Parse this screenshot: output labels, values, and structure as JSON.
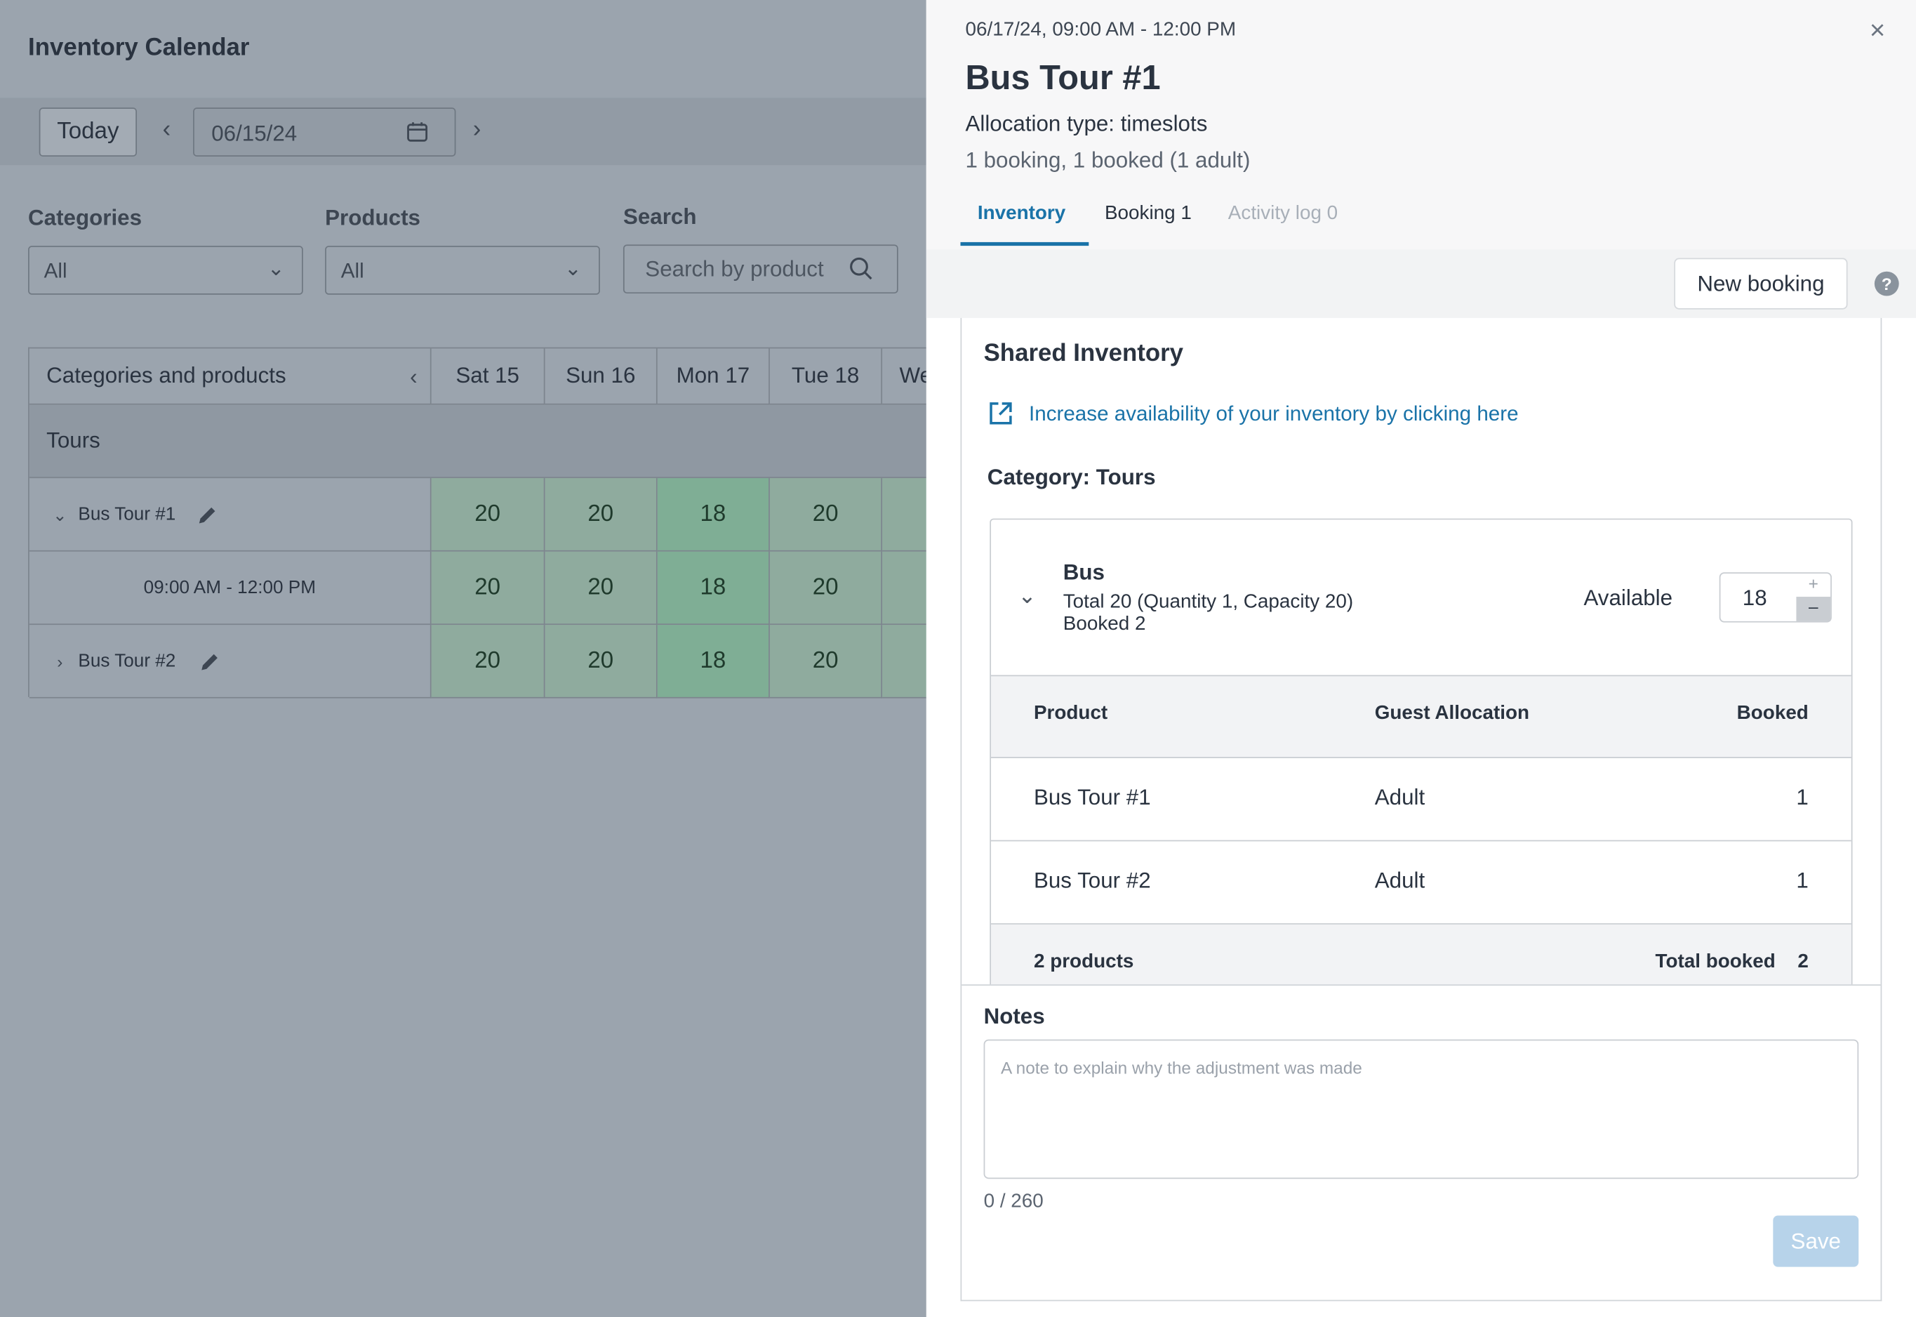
{
  "calendar": {
    "title": "Inventory Calendar",
    "today": "Today",
    "date": "06/15/24",
    "filters": {
      "categories": {
        "label": "Categories",
        "value": "All"
      },
      "products": {
        "label": "Products",
        "value": "All"
      },
      "search": {
        "label": "Search",
        "placeholder": "Search by product"
      }
    },
    "grid": {
      "header": "Categories and products",
      "days": [
        "Sat 15",
        "Sun 16",
        "Mon 17",
        "Tue 18",
        "We"
      ],
      "category": "Tours",
      "rows": [
        {
          "label": "Bus Tour #1",
          "values": [
            20,
            20,
            18,
            20
          ]
        },
        {
          "label": "09:00 AM - 12:00 PM",
          "values": [
            20,
            20,
            18,
            20
          ]
        },
        {
          "label": "Bus Tour #2",
          "values": [
            20,
            20,
            18,
            20
          ]
        }
      ]
    }
  },
  "panel": {
    "datetime": "06/17/24, 09:00 AM - 12:00 PM",
    "title": "Bus Tour #1",
    "allocation": "Allocation type: timeslots",
    "summary": "1 booking, 1 booked (1 adult)",
    "tabs": [
      "Inventory",
      "Booking 1",
      "Activity log 0"
    ],
    "new_booking": "New booking",
    "shared_title": "Shared Inventory",
    "link": "Increase availability of your inventory by clicking here",
    "category": "Category: Tours",
    "resource": {
      "name": "Bus",
      "total": "Total 20 (Quantity 1, Capacity 20)",
      "booked": "Booked 2",
      "available_label": "Available",
      "available": 18
    },
    "table": {
      "headers": [
        "Product",
        "Guest Allocation",
        "Booked"
      ],
      "rows": [
        [
          "Bus Tour #1",
          "Adult",
          1
        ],
        [
          "Bus Tour #2",
          "Adult",
          1
        ]
      ],
      "footer": {
        "count": "2 products",
        "total_label": "Total booked",
        "total": 2
      }
    },
    "notes": {
      "label": "Notes",
      "placeholder": "A note to explain why the adjustment was made",
      "counter": "0 / 260",
      "save": "Save"
    }
  }
}
